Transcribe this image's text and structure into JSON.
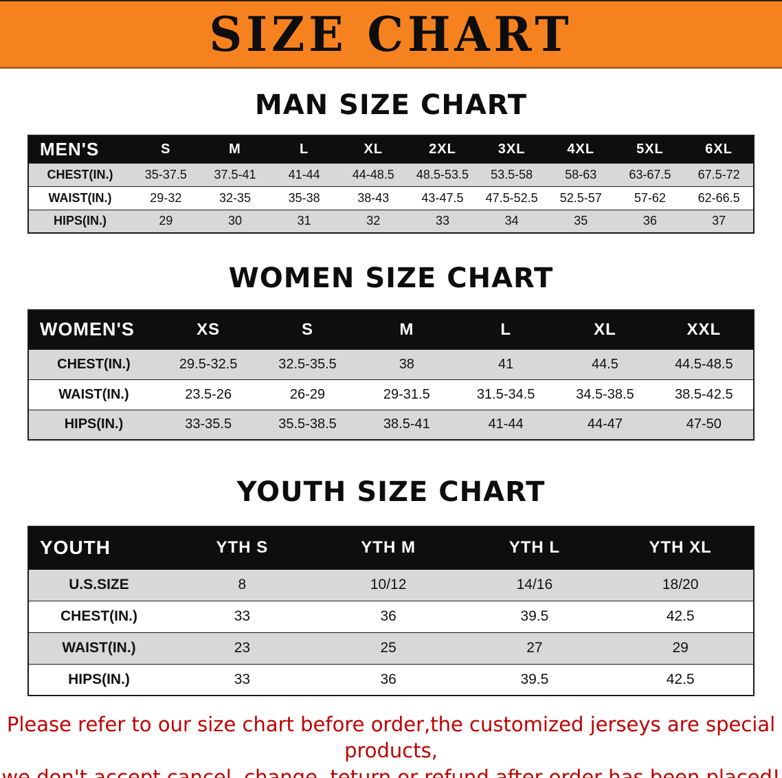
{
  "colors": {
    "accent-orange": "#f6821f",
    "table-header-bg": "#0e0e0e",
    "row-gray": "#d8d8d8",
    "warning-red": "#c00000"
  },
  "banner": {
    "title": "SIZE CHART"
  },
  "sections": [
    {
      "heading": "MAN SIZE CHART",
      "table": {
        "header": [
          "MEN'S",
          "S",
          "M",
          "L",
          "XL",
          "2XL",
          "3XL",
          "4XL",
          "5XL",
          "6XL"
        ],
        "rows": [
          [
            "CHEST(IN.)",
            "35-37.5",
            "37.5-41",
            "41-44",
            "44-48.5",
            "48.5-53.5",
            "53.5-58",
            "58-63",
            "63-67.5",
            "67.5-72"
          ],
          [
            "WAIST(IN.)",
            "29-32",
            "32-35",
            "35-38",
            "38-43",
            "43-47.5",
            "47.5-52.5",
            "52.5-57",
            "57-62",
            "62-66.5"
          ],
          [
            "HIPS(IN.)",
            "29",
            "30",
            "31",
            "32",
            "33",
            "34",
            "35",
            "36",
            "37"
          ]
        ]
      }
    },
    {
      "heading": "WOMEN SIZE CHART",
      "table": {
        "header": [
          "WOMEN'S",
          "XS",
          "S",
          "M",
          "L",
          "XL",
          "XXL"
        ],
        "rows": [
          [
            "CHEST(IN.)",
            "29.5-32.5",
            "32.5-35.5",
            "38",
            "41",
            "44.5",
            "44.5-48.5"
          ],
          [
            "WAIST(IN.)",
            "23.5-26",
            "26-29",
            "29-31.5",
            "31.5-34.5",
            "34.5-38.5",
            "38.5-42.5"
          ],
          [
            "HIPS(IN.)",
            "33-35.5",
            "35.5-38.5",
            "38.5-41",
            "41-44",
            "44-47",
            "47-50"
          ]
        ]
      }
    },
    {
      "heading": "YOUTH SIZE CHART",
      "table": {
        "header": [
          "YOUTH",
          "YTH S",
          "YTH M",
          "YTH L",
          "YTH XL"
        ],
        "rows": [
          [
            "U.S.SIZE",
            "8",
            "10/12",
            "14/16",
            "18/20"
          ],
          [
            "CHEST(IN.)",
            "33",
            "36",
            "39.5",
            "42.5"
          ],
          [
            "WAIST(IN.)",
            "23",
            "25",
            "27",
            "29"
          ],
          [
            "HIPS(IN.)",
            "33",
            "36",
            "39.5",
            "42.5"
          ]
        ]
      }
    }
  ],
  "disclaimer": {
    "lines": [
      "Please refer to our size chart before order,the customized jerseys are special products,",
      "we don't accept cancel, change, teturn or refund after order has been placed!"
    ]
  }
}
